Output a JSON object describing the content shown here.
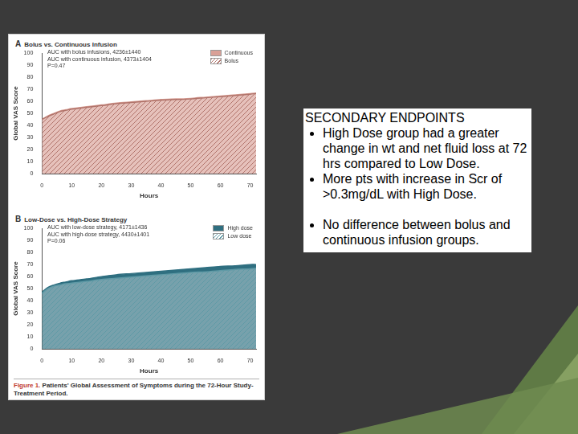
{
  "chart_data": [
    {
      "type": "area",
      "panel_label": "A",
      "title": "Bolus vs. Continuous Infusion",
      "annotations": [
        "AUC with bolus infusions, 4236±1440",
        "AUC with continuous infusion, 4373±1404",
        "P=0.47"
      ],
      "x_label": "Hours",
      "y_label": "Global VAS Score",
      "x": [
        0,
        2,
        4,
        6,
        8,
        10,
        15,
        20,
        25,
        30,
        35,
        40,
        45,
        50,
        55,
        60,
        65,
        70,
        72
      ],
      "series": [
        {
          "name": "Continuous",
          "color": "#d9a097",
          "values": [
            45,
            48,
            50,
            52,
            53,
            54,
            55.5,
            57,
            58.5,
            59.5,
            60.5,
            61.5,
            62,
            62.5,
            63.5,
            64.5,
            65.5,
            66.5,
            67
          ]
        },
        {
          "name": "Bolus",
          "color": "#b0736a",
          "values": [
            45,
            47.5,
            49.5,
            51.5,
            52.5,
            53.5,
            55,
            56.5,
            58,
            59,
            60,
            61,
            61.5,
            62,
            63,
            64,
            65,
            66,
            66.5
          ]
        }
      ],
      "xlim": [
        0,
        72
      ],
      "xticks": [
        0,
        10,
        20,
        30,
        40,
        50,
        60,
        70
      ],
      "ylim": [
        0,
        100
      ],
      "yticks": [
        0,
        10,
        20,
        30,
        40,
        50,
        60,
        70,
        80,
        90,
        100
      ],
      "grid": false,
      "legend": "upper right"
    },
    {
      "type": "area",
      "panel_label": "B",
      "title": "Low-Dose vs. High-Dose Strategy",
      "annotations": [
        "AUC with low-dose strategy, 4171±1436",
        "AUC with high-dose strategy, 4430±1401",
        "P=0.06"
      ],
      "x_label": "Hours",
      "y_label": "Global VAS Score",
      "x": [
        0,
        2,
        4,
        6,
        8,
        10,
        15,
        20,
        25,
        30,
        35,
        40,
        45,
        50,
        55,
        60,
        65,
        70,
        72
      ],
      "series": [
        {
          "name": "High dose",
          "color": "#2f6f80",
          "values": [
            47,
            51,
            53,
            54.5,
            55.5,
            56.5,
            58,
            60,
            61.5,
            62.5,
            63.5,
            64.5,
            65.5,
            66.5,
            67.5,
            68.5,
            69,
            70,
            70
          ]
        },
        {
          "name": "Low dose",
          "color": "#5f9aa6",
          "values": [
            46,
            50,
            52,
            53,
            54,
            54.5,
            56,
            57.5,
            58.5,
            59.5,
            60.5,
            61.5,
            62.5,
            63.5,
            64,
            65,
            66,
            66.5,
            67
          ]
        }
      ],
      "xlim": [
        0,
        72
      ],
      "xticks": [
        0,
        10,
        20,
        30,
        40,
        50,
        60,
        70
      ],
      "ylim": [
        0,
        100
      ],
      "yticks": [
        0,
        10,
        20,
        30,
        40,
        50,
        60,
        70,
        80,
        90,
        100
      ],
      "grid": false,
      "legend": "upper right"
    }
  ],
  "figure_caption": {
    "label": "Figure 1.",
    "text": "Patients' Global Assessment of Symptoms during the 72-Hour Study-Treatment Period."
  },
  "slide": {
    "heading": "SECONDARY ENDPOINTS",
    "bullets": [
      "High Dose group had a greater change in wt and net fluid loss at 72 hrs compared to Low Dose.",
      "More pts with increase in Scr of >0.3mg/dL with High Dose.",
      "No difference between bolus and continuous infusion groups."
    ]
  }
}
